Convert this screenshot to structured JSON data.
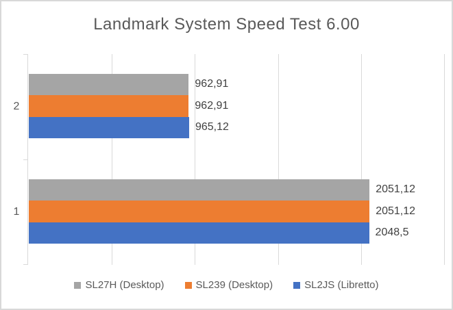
{
  "chart_data": {
    "type": "bar",
    "orientation": "horizontal",
    "title": "Landmark System Speed Test 6.00",
    "categories": [
      "2",
      "1"
    ],
    "series": [
      {
        "name": "SL27H (Desktop)",
        "color": "#A5A5A5",
        "values": [
          962.91,
          2051.12
        ],
        "value_labels": [
          "962,91",
          "2051,12"
        ]
      },
      {
        "name": "SL239 (Desktop)",
        "color": "#ED7D31",
        "values": [
          962.91,
          2051.12
        ],
        "value_labels": [
          "962,91",
          "2051,12"
        ]
      },
      {
        "name": "SL2JS (Libretto)",
        "color": "#4472C4",
        "values": [
          965.12,
          2048.5
        ],
        "value_labels": [
          "965,12",
          "2048,5"
        ]
      }
    ],
    "xlim": [
      0,
      2500
    ],
    "gridline_values": [
      500,
      1000,
      1500,
      2000,
      2500
    ],
    "grid": true,
    "legend_position": "bottom",
    "colors": {
      "gridline": "#D9D9D9",
      "axis": "#D9D9D9",
      "title_text": "#595959",
      "data_label_text": "#404040",
      "category_label_text": "#595959",
      "legend_text": "#595959",
      "frame_border": "#D8D8D8",
      "background": "#FFFFFF"
    }
  }
}
